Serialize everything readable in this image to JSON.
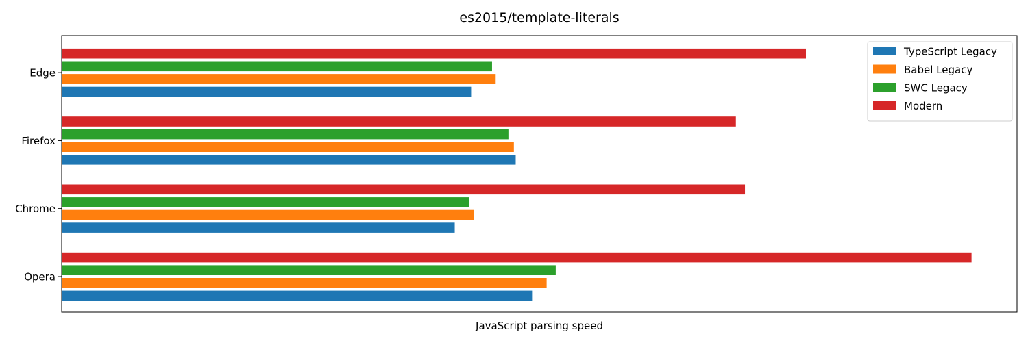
{
  "chart_data": {
    "type": "bar",
    "orientation": "horizontal",
    "title": "es2015/template-literals",
    "xlabel": "JavaScript parsing speed",
    "ylabel": "",
    "x_ticks_shown": false,
    "grid": false,
    "legend_position": "top-right",
    "xlim": [
      0,
      1.05
    ],
    "categories": [
      "Opera",
      "Chrome",
      "Firefox",
      "Edge"
    ],
    "series": [
      {
        "name": "TypeScript Legacy",
        "color": "#1f77b4",
        "values": [
          0.517,
          0.432,
          0.499,
          0.45
        ]
      },
      {
        "name": "Babel Legacy",
        "color": "#ff7f0e",
        "values": [
          0.533,
          0.453,
          0.497,
          0.477
        ]
      },
      {
        "name": "SWC Legacy",
        "color": "#2ca02c",
        "values": [
          0.543,
          0.448,
          0.491,
          0.473
        ]
      },
      {
        "name": "Modern",
        "color": "#d62728",
        "values": [
          1.0,
          0.751,
          0.741,
          0.818
        ]
      }
    ]
  }
}
